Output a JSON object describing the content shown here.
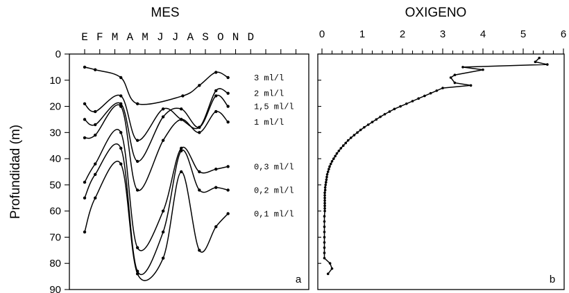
{
  "chart_data": [
    {
      "type": "line",
      "panel": "a",
      "title": "MES",
      "ylabel": "Profundidad (m)",
      "ylim": [
        0,
        90
      ],
      "y_ticks": [
        0,
        10,
        20,
        30,
        40,
        50,
        60,
        70,
        80,
        90
      ],
      "categories": [
        "E",
        "F",
        "M",
        "A",
        "M",
        "J",
        "J",
        "A",
        "S",
        "O",
        "N",
        "D"
      ],
      "y_inverted": true,
      "series": [
        {
          "name": "3 ml/l",
          "x": [
            1,
            1.7,
            3.4,
            4.5,
            7.5,
            8.6,
            9.7,
            10.5
          ],
          "values": [
            5,
            6,
            9,
            19,
            16,
            12,
            7,
            9
          ]
        },
        {
          "name": "2 ml/l",
          "x": [
            1,
            1.7,
            3.4,
            4.5,
            6.2,
            7.4,
            8.6,
            9.7,
            10.5
          ],
          "values": [
            19,
            22,
            16,
            33,
            21,
            25,
            28,
            14,
            15
          ]
        },
        {
          "name": "1,5 ml/l",
          "x": [
            1,
            1.7,
            3.4,
            4.5,
            6.2,
            7.4,
            8.6,
            9.7,
            10.5
          ],
          "values": [
            25,
            27,
            19,
            41,
            24,
            21,
            28,
            16,
            20
          ]
        },
        {
          "name": "1 ml/l",
          "x": [
            1,
            1.7,
            3.4,
            4.5,
            6.2,
            7.4,
            8.6,
            9.7,
            10.5
          ],
          "values": [
            32,
            31,
            20,
            52,
            33,
            25,
            30,
            22,
            26
          ]
        },
        {
          "name": "0,3 ml/l",
          "x": [
            1,
            1.7,
            3.4,
            4.5,
            6.2,
            7.4,
            8.6,
            9.7,
            10.5
          ],
          "values": [
            49,
            42,
            30,
            74,
            60,
            36,
            45,
            44,
            43
          ]
        },
        {
          "name": "0,2 ml/l",
          "x": [
            1,
            1.7,
            3.4,
            4.5,
            6.2,
            7.4,
            8.6,
            9.7,
            10.5
          ],
          "values": [
            55,
            46,
            36,
            83,
            68,
            37,
            52,
            51,
            52
          ]
        },
        {
          "name": "0,1 ml/l",
          "x": [
            1,
            1.7,
            3.4,
            4.5,
            6.2,
            7.4,
            8.6,
            9.7,
            10.5
          ],
          "values": [
            68,
            55,
            42,
            84,
            78,
            45,
            75,
            66,
            61
          ]
        }
      ],
      "annotation": "a"
    },
    {
      "type": "line",
      "panel": "b",
      "title": "OXIGENO",
      "xlim": [
        0,
        6
      ],
      "x_ticks": [
        0,
        1,
        2,
        3,
        4,
        5,
        6
      ],
      "ylim": [
        0,
        90
      ],
      "y_inverted": true,
      "series": [
        {
          "x": [
            5.4,
            5.3,
            5.6,
            3.5,
            4.0,
            3.3,
            3.2,
            3.3,
            3.7,
            3.0,
            2.85,
            2.7,
            2.55,
            2.4,
            2.25,
            2.1,
            1.95,
            1.8,
            1.68,
            1.56,
            1.45,
            1.35,
            1.25,
            1.15,
            1.05,
            0.96,
            0.88,
            0.8,
            0.72,
            0.65,
            0.59,
            0.53,
            0.47,
            0.42,
            0.37,
            0.33,
            0.29,
            0.25,
            0.22,
            0.19,
            0.17,
            0.15,
            0.13,
            0.12,
            0.11,
            0.1,
            0.09,
            0.08,
            0.08,
            0.07,
            0.07,
            0.07,
            0.07,
            0.07,
            0.07,
            0.07,
            0.07,
            0.06,
            0.06,
            0.06,
            0.06,
            0.06,
            0.06,
            0.06,
            0.06,
            0.06,
            0.2,
            0.25,
            0.15
          ],
          "y": [
            1.5,
            3,
            4,
            5,
            6,
            8,
            9,
            11,
            12,
            13,
            14,
            15,
            16,
            17,
            18,
            19,
            20,
            21,
            22,
            23,
            24,
            25,
            26,
            27,
            28,
            29,
            30,
            31,
            32,
            33,
            34,
            35,
            36,
            37,
            38,
            39,
            40,
            41,
            42,
            43,
            44,
            45,
            46,
            47,
            48,
            49,
            50,
            51,
            52,
            53,
            54,
            55,
            56,
            57,
            58,
            59,
            60,
            62,
            64,
            66,
            68,
            70,
            72,
            74,
            76,
            78,
            80,
            82,
            84
          ]
        }
      ],
      "annotation": "b"
    }
  ]
}
